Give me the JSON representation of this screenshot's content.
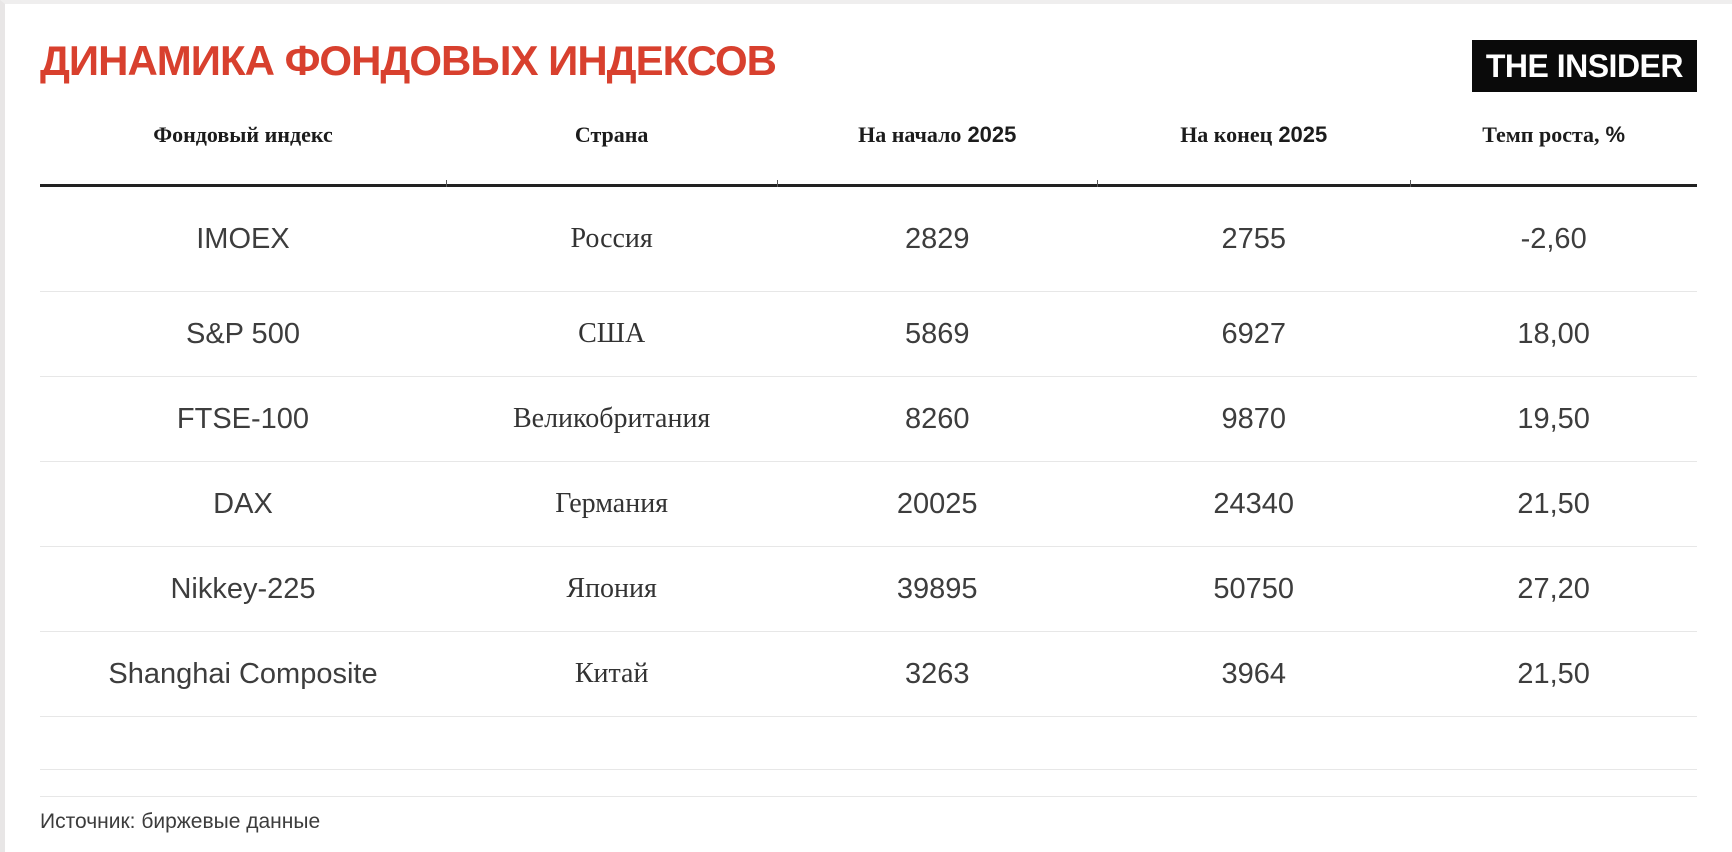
{
  "page": {
    "title": "ДИНАМИКА ФОНДОВЫХ ИНДЕКСОВ",
    "logo_text": "THE INSIDER",
    "source": "Источник: биржевые данные"
  },
  "colors": {
    "title_red": "#d8402e",
    "logo_background": "#0a0a0a",
    "logo_text": "#ffffff",
    "header_rule": "#212121",
    "row_divider": "#e7e7e7"
  },
  "table": {
    "columns": [
      {
        "serif": "Фондовый индекс",
        "sans": ""
      },
      {
        "serif": "Страна",
        "sans": ""
      },
      {
        "serif": "На начало",
        "sans": "2025"
      },
      {
        "serif": "На конец",
        "sans": "2025"
      },
      {
        "serif": "Темп роста,",
        "sans": "%"
      }
    ],
    "rows": [
      {
        "index": "IMOEX",
        "country": "Россия",
        "start": "2829",
        "end": "2755",
        "growth": "-2,60"
      },
      {
        "index": "S&P 500",
        "country": "США",
        "start": "5869",
        "end": "6927",
        "growth": "18,00"
      },
      {
        "index": "FTSE-100",
        "country": "Великобритания",
        "start": "8260",
        "end": "9870",
        "growth": "19,50"
      },
      {
        "index": "DAX",
        "country": "Германия",
        "start": "20025",
        "end": "24340",
        "growth": "21,50"
      },
      {
        "index": "Nikkey-225",
        "country": "Япония",
        "start": "39895",
        "end": "50750",
        "growth": "27,20"
      },
      {
        "index": "Shanghai Composite",
        "country": "Китай",
        "start": "3263",
        "end": "3964",
        "growth": "21,50"
      }
    ]
  },
  "chart_data": {
    "type": "table",
    "title": "ДИНАМИКА ФОНДОВЫХ ИНДЕКСОВ",
    "columns": [
      "Фондовый индекс",
      "Страна",
      "На начало 2025",
      "На конец 2025",
      "Темп роста, %"
    ],
    "rows": [
      [
        "IMOEX",
        "Россия",
        2829,
        2755,
        -2.6
      ],
      [
        "S&P 500",
        "США",
        5869,
        6927,
        18.0
      ],
      [
        "FTSE-100",
        "Великобритания",
        8260,
        9870,
        19.5
      ],
      [
        "DAX",
        "Германия",
        20025,
        24340,
        21.5
      ],
      [
        "Nikkey-225",
        "Япония",
        39895,
        50750,
        27.2
      ],
      [
        "Shanghai Composite",
        "Китай",
        3263,
        3964,
        21.5
      ]
    ],
    "source": "Источник: биржевые данные",
    "legend_position": "none",
    "grid": "horizontal-dividers"
  }
}
